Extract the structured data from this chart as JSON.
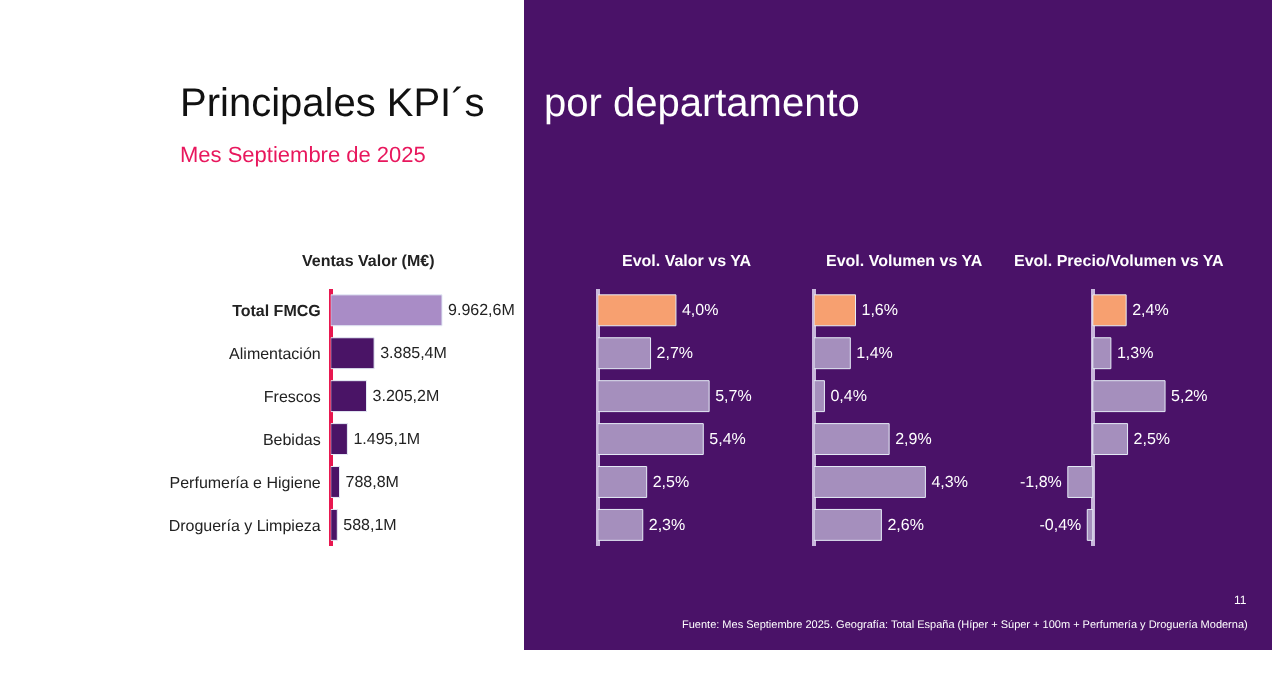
{
  "chart_data": [
    {
      "type": "bar",
      "orientation": "horizontal",
      "title": "Principales KPI´s por departamento",
      "subtitle": "Mes Septiembre de 2025",
      "xlabel": "Ventas Valor (M€)",
      "tick_labels": "y",
      "categories": [
        "Total FMCG",
        "Alimentación",
        "Frescos",
        "Bebidas",
        "Perfumería e Higiene",
        "Droguería y Limpieza"
      ],
      "values": [
        9962.6,
        3885.4,
        3205.2,
        1495.1,
        788.8,
        588.1
      ],
      "colors": [
        "#a98cc6",
        "#4a1466",
        "#4a1466",
        "#4a1466",
        "#4a1466",
        "#4a1466"
      ],
      "value_labels": [
        "9.962,6M",
        "3.885,4M",
        "3.205,2M",
        "1.495,1M",
        "788,8M",
        "588,1M"
      ]
    },
    {
      "type": "bar",
      "orientation": "horizontal",
      "xlabel": "Evol. Valor vs YA",
      "tick_labels": false,
      "categories": [
        null,
        null,
        null,
        null,
        null,
        null
      ],
      "values": [
        4.0,
        2.7,
        5.7,
        5.4,
        2.5,
        2.3
      ],
      "colors": [
        "#f7a070",
        "#a58fbd",
        "#a58fbd",
        "#a58fbd",
        "#a58fbd",
        "#a58fbd"
      ],
      "value_labels": [
        "4,0%",
        "2,7%",
        "5,7%",
        "5,4%",
        "2,5%",
        "2,3%"
      ]
    },
    {
      "type": "bar",
      "orientation": "horizontal",
      "xlabel": "Evol. Volumen vs YA",
      "tick_labels": false,
      "categories": [
        null,
        null,
        null,
        null,
        null,
        null
      ],
      "values": [
        1.6,
        1.4,
        0.4,
        2.9,
        4.3,
        2.6
      ],
      "colors": [
        "#f7a070",
        "#a58fbd",
        "#a58fbd",
        "#a58fbd",
        "#a58fbd",
        "#a58fbd"
      ],
      "value_labels": [
        "1,6%",
        "1,4%",
        "0,4%",
        "2,9%",
        "4,3%",
        "2,6%"
      ]
    },
    {
      "type": "bar",
      "orientation": "horizontal",
      "xlabel": "Evol. Precio/Volumen vs YA",
      "tick_labels": false,
      "categories": [
        null,
        null,
        null,
        null,
        null,
        null
      ],
      "values": [
        2.4,
        1.3,
        5.2,
        2.5,
        -1.8,
        -0.4
      ],
      "colors": [
        "#f7a070",
        "#a58fbd",
        "#a58fbd",
        "#a58fbd",
        "#a58fbd",
        "#a58fbd"
      ],
      "value_labels": [
        "2,4%",
        "1,3%",
        "5,2%",
        "2,5%",
        "-1,8%",
        "-0,4%"
      ],
      "annotations": [
        "11",
        "Fuente: Mes Septiembre 2025. Geografía: Total España (Híper + Súper + 100m + Perfumería y Droguería Moderna)"
      ]
    }
  ]
}
